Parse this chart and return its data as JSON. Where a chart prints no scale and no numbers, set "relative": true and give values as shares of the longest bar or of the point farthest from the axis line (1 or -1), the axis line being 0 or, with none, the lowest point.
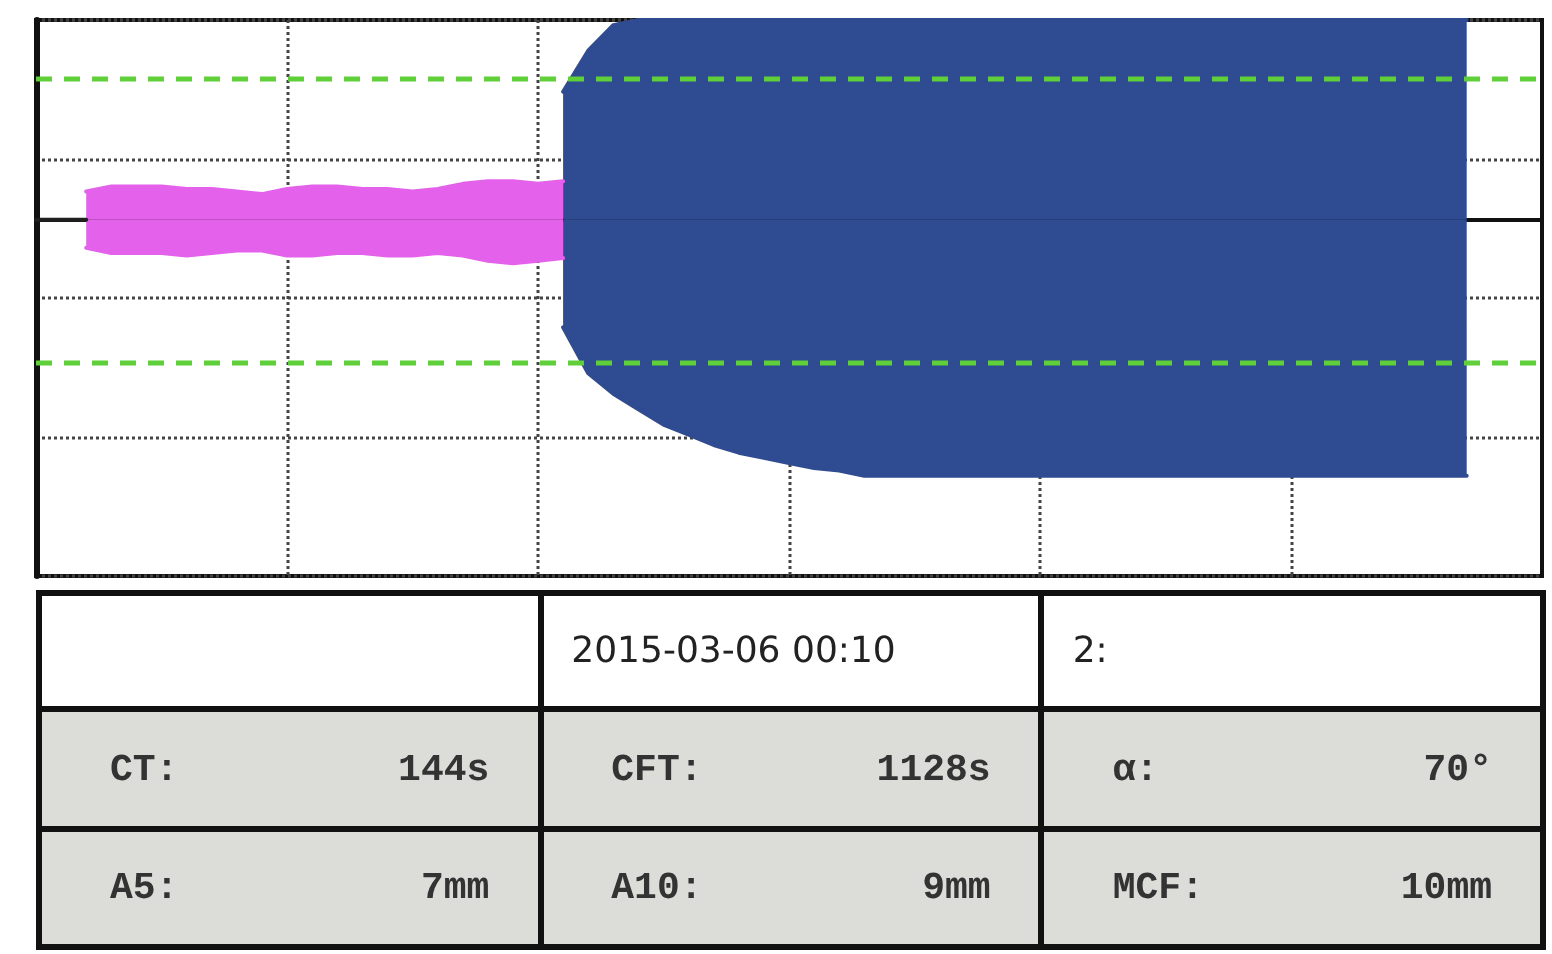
{
  "chart_data": [
    {
      "type": "area",
      "relative": true,
      "grid": true,
      "marker": "none",
      "line_style": "solid",
      "categories": [
        null,
        null,
        null,
        null,
        null,
        null,
        null,
        null,
        null,
        null,
        null,
        null,
        null,
        null,
        null,
        null,
        null,
        null,
        null,
        null,
        null,
        null,
        null,
        null,
        null,
        null,
        null,
        null,
        null,
        null,
        null,
        null,
        null,
        null,
        null,
        null,
        null,
        null,
        null,
        null,
        null,
        null,
        null,
        null,
        null,
        null,
        null,
        null,
        null,
        null,
        null,
        null,
        null,
        null,
        null,
        null,
        null,
        null,
        null,
        null,
        null
      ],
      "series": [
        {
          "type": "line",
          "color": "#1f1f1f",
          "values": [
            0,
            0,
            0,
            null,
            null,
            null,
            null,
            null,
            null,
            null,
            null,
            null,
            null,
            null,
            null,
            null,
            null,
            null,
            null,
            null,
            null,
            null,
            null,
            null,
            null,
            null,
            null,
            null,
            null,
            null,
            null,
            null,
            null,
            null,
            null,
            null,
            null,
            null,
            null,
            null,
            null,
            null,
            null,
            null,
            null,
            null,
            null,
            null,
            null,
            null,
            null,
            null,
            null,
            null,
            null,
            null,
            null,
            null,
            null,
            null,
            null
          ]
        },
        {
          "color": "#e461ec",
          "values": [
            null,
            null,
            0.11,
            0.13,
            0.13,
            0.13,
            0.12,
            0.12,
            0.11,
            0.1,
            0.12,
            0.13,
            0.13,
            0.12,
            0.12,
            0.11,
            0.12,
            0.14,
            0.15,
            0.15,
            0.14,
            0.15,
            null,
            null,
            null,
            null,
            null,
            null,
            null,
            null,
            null,
            null,
            null,
            null,
            null,
            null,
            null,
            null,
            null,
            null,
            null,
            null,
            null,
            null,
            null,
            null,
            null,
            null,
            null,
            null,
            null,
            null,
            null,
            null,
            null,
            null,
            null,
            null,
            null,
            null,
            null
          ]
        },
        {
          "color": "#e461ec",
          "values": [
            null,
            null,
            -0.11,
            -0.13,
            -0.13,
            -0.13,
            -0.14,
            -0.13,
            -0.12,
            -0.12,
            -0.14,
            -0.14,
            -0.13,
            -0.13,
            -0.14,
            -0.14,
            -0.13,
            -0.14,
            -0.16,
            -0.17,
            -0.16,
            -0.15,
            null,
            null,
            null,
            null,
            null,
            null,
            null,
            null,
            null,
            null,
            null,
            null,
            null,
            null,
            null,
            null,
            null,
            null,
            null,
            null,
            null,
            null,
            null,
            null,
            null,
            null,
            null,
            null,
            null,
            null,
            null,
            null,
            null,
            null,
            null,
            null,
            null,
            null,
            null
          ]
        },
        {
          "color": "#2f4b91",
          "values": [
            null,
            null,
            null,
            null,
            null,
            null,
            null,
            null,
            null,
            null,
            null,
            null,
            null,
            null,
            null,
            null,
            null,
            null,
            null,
            null,
            null,
            0.5,
            0.66,
            0.76,
            0.78,
            0.78,
            0.78,
            0.78,
            0.78,
            0.78,
            0.78,
            0.78,
            0.78,
            0.78,
            0.78,
            0.78,
            0.78,
            0.78,
            0.78,
            0.78,
            0.78,
            0.78,
            0.78,
            0.78,
            0.78,
            0.78,
            0.78,
            0.78,
            0.78,
            0.78,
            0.78,
            0.78,
            0.78,
            0.78,
            0.78,
            0.78,
            0.78,
            0.78,
            null,
            null,
            null
          ]
        },
        {
          "color": "#2f4b91",
          "values": [
            null,
            null,
            null,
            null,
            null,
            null,
            null,
            null,
            null,
            null,
            null,
            null,
            null,
            null,
            null,
            null,
            null,
            null,
            null,
            null,
            null,
            -0.42,
            -0.6,
            -0.68,
            -0.74,
            -0.8,
            -0.84,
            -0.88,
            -0.91,
            -0.93,
            -0.95,
            -0.97,
            -0.98,
            -1,
            -1,
            -1,
            -1,
            -1,
            -1,
            -1,
            -1,
            -1,
            -1,
            -1,
            -1,
            -1,
            -1,
            -1,
            -1,
            -1,
            -1,
            -1,
            -1,
            -1,
            -1,
            -1,
            -1,
            -1,
            null,
            null,
            null
          ]
        }
      ],
      "ref_lines": [
        {
          "axis": "y",
          "value": 0.55,
          "color": "#5fcf3a",
          "line_style": "dashed"
        },
        {
          "axis": "y",
          "value": -0.56,
          "color": "#5fcf3a",
          "line_style": "dashed"
        }
      ]
    },
    {
      "type": "other",
      "annotations": [
        "2015-03-06  00:10",
        "2:",
        "CT:",
        "144s",
        "CFT:",
        "1128s",
        "α:",
        "70°",
        "A5:",
        "7mm",
        "A10:",
        "9mm",
        "MCF:",
        "10mm"
      ]
    }
  ]
}
